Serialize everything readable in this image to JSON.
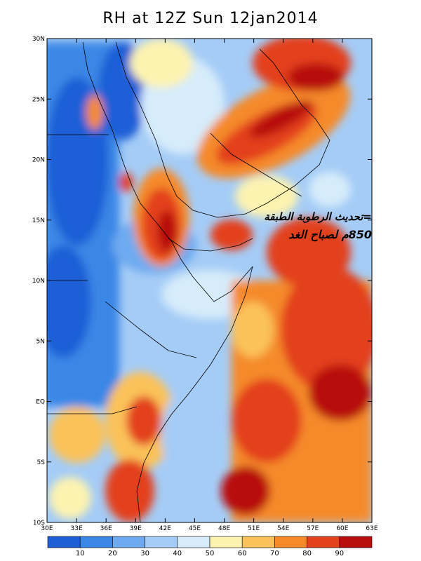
{
  "title": "RH at 12Z Sun 12jan2014",
  "annotation": {
    "line1": "=تحديث الرطوبة الطبقة",
    "line2": "850م لصباح الغد"
  },
  "axes": {
    "lon_labels": [
      "30E",
      "33E",
      "36E",
      "39E",
      "42E",
      "45E",
      "48E",
      "51E",
      "54E",
      "57E",
      "60E",
      "63E"
    ],
    "lat_labels": [
      "30N",
      "25N",
      "20N",
      "15N",
      "10N",
      "5N",
      "EQ",
      "5S",
      "10S"
    ],
    "lon_range": [
      30,
      63
    ],
    "lat_range": [
      -10,
      30
    ]
  },
  "colorbar": {
    "labels": [
      "10",
      "20",
      "30",
      "40",
      "50",
      "60",
      "70",
      "80",
      "90"
    ],
    "colors": [
      "#1e5fd6",
      "#3b87e6",
      "#6eaaf0",
      "#a5ccf6",
      "#d6ecfb",
      "#fdf3b0",
      "#fbc25a",
      "#f58a2a",
      "#e3401c",
      "#b80e0e"
    ]
  },
  "chart_data": {
    "type": "heatmap",
    "title": "RH at 12Z Sun 12jan2014",
    "field": "RH",
    "level_note": "850",
    "x_range": [
      30,
      63
    ],
    "y_range": [
      -10,
      30
    ],
    "contour_levels": [
      10,
      20,
      30,
      40,
      50,
      60,
      70,
      80,
      90
    ],
    "xticks": [
      "30E",
      "33E",
      "36E",
      "39E",
      "42E",
      "45E",
      "48E",
      "51E",
      "54E",
      "57E",
      "60E",
      "63E"
    ],
    "yticks": [
      "30N",
      "25N",
      "20N",
      "15N",
      "10N",
      "5N",
      "EQ",
      "5S",
      "10S"
    ]
  }
}
